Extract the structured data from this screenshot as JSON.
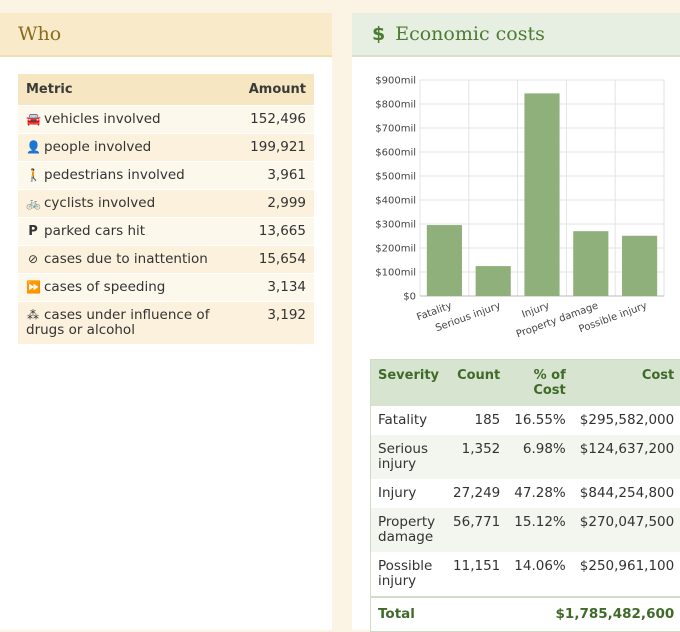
{
  "who": {
    "title": "Who",
    "headers": {
      "metric": "Metric",
      "amount": "Amount"
    },
    "rows": [
      {
        "icon": "car-icon",
        "glyph": "🚘",
        "label": "vehicles involved",
        "amount": "152,496"
      },
      {
        "icon": "person-icon",
        "glyph": "👤",
        "label": "people involved",
        "amount": "199,921"
      },
      {
        "icon": "pedestrian-icon",
        "glyph": "🚶",
        "label": "pedestrians involved",
        "amount": "3,961"
      },
      {
        "icon": "bicycle-icon",
        "glyph": "🚲",
        "label": "cyclists involved",
        "amount": "2,999"
      },
      {
        "icon": "parking-icon",
        "glyph": "P",
        "label": "parked cars hit",
        "amount": "13,665"
      },
      {
        "icon": "eye-slash-icon",
        "glyph": "⊘",
        "label": "cases due to inattention",
        "amount": "15,654"
      },
      {
        "icon": "fast-forward-icon",
        "glyph": "⏩",
        "label": "cases of speeding",
        "amount": "3,134"
      },
      {
        "icon": "cannabis-icon",
        "glyph": "⁂",
        "label": "cases under influence of drugs or alcohol",
        "amount": "3,192"
      }
    ]
  },
  "econ": {
    "title": "Economic costs",
    "dollar_icon": "$"
  },
  "chart_data": {
    "type": "bar",
    "categories": [
      "Fatality",
      "Serious injury",
      "Injury",
      "Property damage",
      "Possible injury"
    ],
    "values": [
      295582000,
      124637200,
      844254800,
      270047500,
      250961100
    ],
    "ylim": [
      0,
      900000000
    ],
    "yticks": [
      "$0",
      "$100mil",
      "$200mil",
      "$300mil",
      "$400mil",
      "$500mil",
      "$600mil",
      "$700mil",
      "$800mil",
      "$900mil"
    ],
    "grid": true,
    "bar_color": "#8fb07a"
  },
  "severity": {
    "headers": {
      "severity": "Severity",
      "count": "Count",
      "pct": "% of Cost",
      "cost": "Cost"
    },
    "rows": [
      {
        "severity": "Fatality",
        "count": "185",
        "pct": "16.55%",
        "cost": "$295,582,000"
      },
      {
        "severity": "Serious injury",
        "count": "1,352",
        "pct": "6.98%",
        "cost": "$124,637,200"
      },
      {
        "severity": "Injury",
        "count": "27,249",
        "pct": "47.28%",
        "cost": "$844,254,800"
      },
      {
        "severity": "Property damage",
        "count": "56,771",
        "pct": "15.12%",
        "cost": "$270,047,500"
      },
      {
        "severity": "Possible injury",
        "count": "11,151",
        "pct": "14.06%",
        "cost": "$250,961,100"
      }
    ],
    "total_label": "Total",
    "total_cost": "$1,785,482,600"
  }
}
